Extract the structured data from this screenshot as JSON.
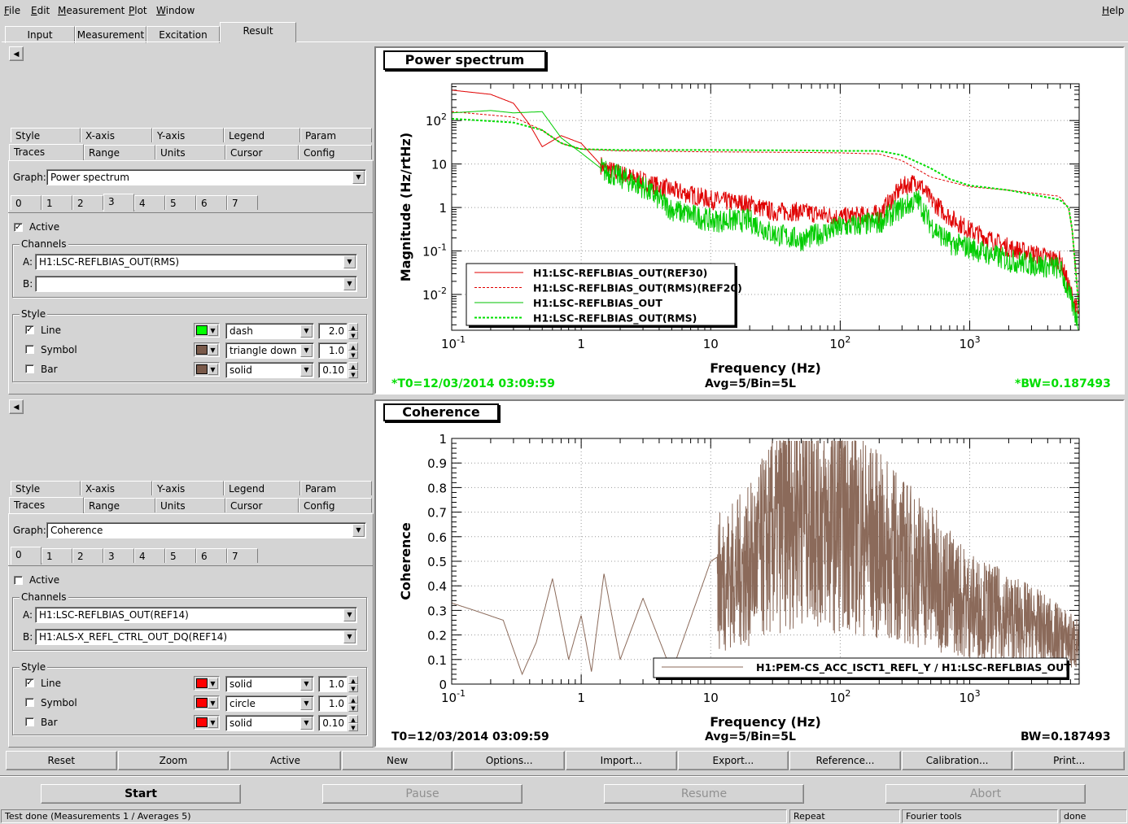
{
  "menu": [
    "File",
    "Edit",
    "Measurement",
    "Plot",
    "Window"
  ],
  "help": "Help",
  "main_tabs": [
    "Input",
    "Measurement",
    "Excitation",
    "Result"
  ],
  "panel_top": {
    "subtabs_row1": [
      "Style",
      "X-axis",
      "Y-axis",
      "Legend",
      "Param"
    ],
    "subtabs_row2": [
      "Traces",
      "Range",
      "Units",
      "Cursor",
      "Config"
    ],
    "graph_label": "Graph:",
    "graph_value": "Power spectrum",
    "trace_tabs": [
      "0",
      "1",
      "2",
      "3",
      "4",
      "5",
      "6",
      "7"
    ],
    "active_label": "Active",
    "channels_title": "Channels",
    "chA_label": "A:",
    "chA_value": "H1:LSC-REFLBIAS_OUT(RMS)",
    "chB_label": "B:",
    "chB_value": "",
    "style_title": "Style",
    "line_label": "Line",
    "line_style": "dash",
    "line_width": "2.0",
    "line_color": "#00ff00",
    "symbol_label": "Symbol",
    "symbol_style": "triangle down",
    "symbol_size": "1.0",
    "symbol_color": "#7a5a4a",
    "bar_label": "Bar",
    "bar_style": "solid",
    "bar_width": "0.10",
    "bar_color": "#7a5a4a"
  },
  "panel_bottom": {
    "subtabs_row1": [
      "Style",
      "X-axis",
      "Y-axis",
      "Legend",
      "Param"
    ],
    "subtabs_row2": [
      "Traces",
      "Range",
      "Units",
      "Cursor",
      "Config"
    ],
    "graph_label": "Graph:",
    "graph_value": "Coherence",
    "trace_tabs": [
      "0",
      "1",
      "2",
      "3",
      "4",
      "5",
      "6",
      "7"
    ],
    "active_label": "Active",
    "channels_title": "Channels",
    "chA_label": "A:",
    "chA_value": "H1:LSC-REFLBIAS_OUT(REF14)",
    "chB_label": "B:",
    "chB_value": "H1:ALS-X_REFL_CTRL_OUT_DQ(REF14)",
    "style_title": "Style",
    "line_label": "Line",
    "line_style": "solid",
    "line_width": "1.0",
    "line_color": "#ff0000",
    "symbol_label": "Symbol",
    "symbol_style": "circle",
    "symbol_size": "1.0",
    "symbol_color": "#ff0000",
    "bar_label": "Bar",
    "bar_style": "solid",
    "bar_width": "0.10",
    "bar_color": "#ff0000"
  },
  "plot_top": {
    "title": "Power spectrum",
    "ylabel": "Magnitude (Hz/rtHz)",
    "xlabel": "Frequency (Hz)",
    "legend": [
      {
        "name": "H1:LSC-REFLBIAS_OUT(REF30)",
        "color": "#e00000",
        "dash": false
      },
      {
        "name": "H1:LSC-REFLBIAS_OUT(RMS)(REF20)",
        "color": "#e00000",
        "dash": true
      },
      {
        "name": "H1:LSC-REFLBIAS_OUT",
        "color": "#00c000",
        "dash": false
      },
      {
        "name": "H1:LSC-REFLBIAS_OUT(RMS)",
        "color": "#00dd00",
        "dash": true
      }
    ],
    "t0": "*T0=12/03/2014 03:09:59",
    "avg": "Avg=5/Bin=5L",
    "bw": "*BW=0.187493"
  },
  "plot_bottom": {
    "title": "Coherence",
    "ylabel": "Coherence",
    "xlabel": "Frequency (Hz)",
    "legend": [
      {
        "name": "H1:PEM-CS_ACC_ISCT1_REFL_Y / H1:LSC-REFLBIAS_OUT",
        "color": "#8b6a5a"
      }
    ],
    "t0": "T0=12/03/2014 03:09:59",
    "avg": "Avg=5/Bin=5L",
    "bw": "BW=0.187493"
  },
  "chart_data": [
    {
      "type": "line",
      "title": "Power spectrum",
      "xlabel": "Frequency (Hz)",
      "ylabel": "Magnitude (Hz/rtHz)",
      "xscale": "log",
      "yscale": "log",
      "xlim": [
        0.1,
        7000
      ],
      "ylim": [
        0.0015,
        700
      ],
      "x_ticks": [
        "10^-1",
        "1",
        "10",
        "10^2",
        "10^3"
      ],
      "y_ticks": [
        "10^-2",
        "10^-1",
        "1",
        "10",
        "10^2"
      ],
      "grid": true,
      "legend_position": "bottom-left",
      "series": [
        {
          "name": "H1:LSC-REFLBIAS_OUT(REF30)",
          "x": [
            0.1,
            0.2,
            0.3,
            0.4,
            0.5,
            0.7,
            1,
            1.5,
            2,
            3,
            5,
            8,
            10,
            20,
            30,
            50,
            100,
            200,
            300,
            400,
            500,
            700,
            1000,
            2000,
            5000,
            7000
          ],
          "y": [
            500,
            400,
            250,
            80,
            25,
            45,
            30,
            8,
            6,
            4,
            2.5,
            1.8,
            1.5,
            1.2,
            0.8,
            0.8,
            0.6,
            0.7,
            3,
            4,
            1.5,
            0.6,
            0.3,
            0.12,
            0.06,
            0.003
          ]
        },
        {
          "name": "H1:LSC-REFLBIAS_OUT(RMS)(REF20)",
          "x": [
            0.1,
            0.3,
            0.5,
            0.7,
            1,
            2,
            5,
            10,
            50,
            100,
            200,
            300,
            500,
            1000,
            2000,
            5000,
            6000,
            7000
          ],
          "y": [
            160,
            120,
            60,
            30,
            22,
            20,
            19.5,
            19,
            18.5,
            18,
            17,
            12,
            5,
            3,
            2.5,
            1.8,
            0.8,
            0.005
          ]
        },
        {
          "name": "H1:LSC-REFLBIAS_OUT",
          "x": [
            0.1,
            0.2,
            0.3,
            0.5,
            0.7,
            1,
            1.5,
            2,
            3,
            5,
            10,
            20,
            30,
            50,
            100,
            200,
            300,
            400,
            500,
            700,
            1000,
            2000,
            5000,
            7000
          ],
          "y": [
            150,
            170,
            150,
            160,
            40,
            18,
            7,
            5,
            3,
            0.9,
            0.5,
            0.5,
            0.25,
            0.18,
            0.35,
            0.45,
            1,
            1.5,
            0.4,
            0.15,
            0.12,
            0.06,
            0.04,
            0.002
          ]
        },
        {
          "name": "H1:LSC-REFLBIAS_OUT(RMS)",
          "x": [
            0.1,
            0.3,
            0.5,
            0.7,
            1,
            2,
            5,
            10,
            50,
            100,
            200,
            300,
            500,
            700,
            1000,
            2000,
            5000,
            6000,
            7000
          ],
          "y": [
            110,
            90,
            60,
            30,
            22,
            21,
            21,
            21,
            20.5,
            20,
            20,
            16,
            8,
            4.5,
            3.2,
            2.5,
            1.5,
            0.9,
            0.004
          ]
        }
      ]
    },
    {
      "type": "line",
      "title": "Coherence",
      "xlabel": "Frequency (Hz)",
      "ylabel": "Coherence",
      "xscale": "log",
      "xlim": [
        0.1,
        7000
      ],
      "ylim": [
        0,
        1
      ],
      "x_ticks": [
        "10^-1",
        "1",
        "10",
        "10^2",
        "10^3"
      ],
      "y_ticks": [
        "0",
        "0.1",
        "0.2",
        "0.3",
        "0.4",
        "0.5",
        "0.6",
        "0.7",
        "0.8",
        "0.9",
        "1"
      ],
      "grid": true,
      "legend_position": "bottom-right",
      "series": [
        {
          "name": "H1:PEM-CS_ACC_ISCT1_REFL_Y / H1:LSC-REFLBIAS_OUT",
          "x": [
            0.1,
            0.15,
            0.25,
            0.35,
            0.45,
            0.6,
            0.8,
            1,
            1.2,
            1.5,
            2,
            3,
            5,
            10,
            20,
            50,
            60,
            80,
            100,
            200,
            500,
            1000,
            3000,
            7000
          ],
          "y": [
            0.33,
            0.3,
            0.26,
            0.04,
            0.17,
            0.43,
            0.1,
            0.28,
            0.05,
            0.45,
            0.1,
            0.35,
            0.05,
            0.5,
            0.6,
            0.95,
            0.92,
            0.8,
            0.85,
            0.7,
            0.55,
            0.4,
            0.3,
            0.2
          ]
        }
      ]
    }
  ],
  "bottom_buttons": [
    "Reset",
    "Zoom",
    "Active",
    "New",
    "Options...",
    "Import...",
    "Export...",
    "Reference...",
    "Calibration...",
    "Print..."
  ],
  "action_buttons": [
    "Start",
    "Pause",
    "Resume",
    "Abort"
  ],
  "status": [
    "Test done (Measurements 1 / Averages 5)",
    "Repeat",
    "Fourier tools",
    "done"
  ]
}
